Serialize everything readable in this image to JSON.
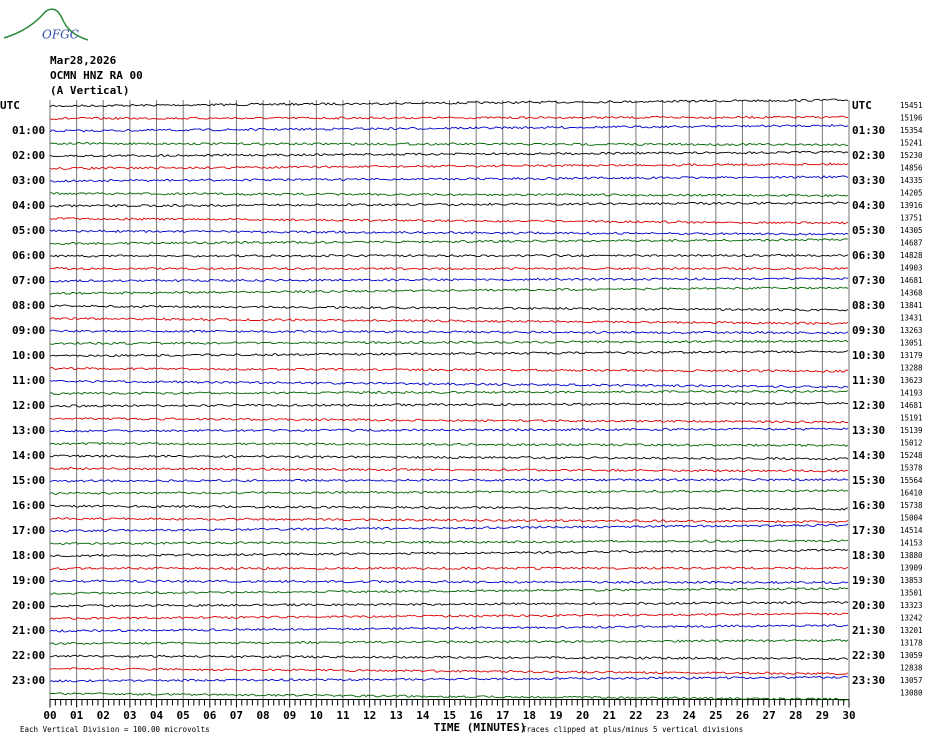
{
  "header": {
    "logo": "OFGC",
    "date": "Mar28,2026",
    "station": "OCMN HNZ RA 00",
    "component": "(A Vertical)"
  },
  "left_labels": [
    "UTC",
    "01:00",
    "02:00",
    "03:00",
    "04:00",
    "05:00",
    "06:00",
    "07:00",
    "08:00",
    "09:00",
    "10:00",
    "11:00",
    "12:00",
    "13:00",
    "14:00",
    "15:00",
    "16:00",
    "17:00",
    "18:00",
    "19:00",
    "20:00",
    "21:00",
    "22:00",
    "23:00"
  ],
  "right_labels": [
    "UTC",
    "01:30",
    "02:30",
    "03:30",
    "04:30",
    "05:30",
    "06:30",
    "07:30",
    "08:30",
    "09:30",
    "10:30",
    "11:30",
    "12:30",
    "13:30",
    "14:30",
    "15:30",
    "16:30",
    "17:30",
    "18:30",
    "19:30",
    "20:30",
    "21:30",
    "22:30",
    "23:30"
  ],
  "counts": [
    15451,
    15196,
    15354,
    15241,
    15230,
    14856,
    14335,
    14205,
    13916,
    13751,
    14305,
    14687,
    14828,
    14903,
    14681,
    14368,
    13841,
    13431,
    13263,
    13051,
    13179,
    13288,
    13623,
    14193,
    14681,
    15191,
    15139,
    15012,
    15248,
    15378,
    15564,
    16410,
    15738,
    15004,
    14514,
    14153,
    13880,
    13909,
    13853,
    13501,
    13323,
    13242,
    13201,
    13178,
    13059,
    12838,
    13057,
    13080
  ],
  "x_ticks": [
    "00",
    "01",
    "02",
    "03",
    "04",
    "05",
    "06",
    "07",
    "08",
    "09",
    "10",
    "11",
    "12",
    "13",
    "14",
    "15",
    "16",
    "17",
    "18",
    "19",
    "20",
    "21",
    "22",
    "23",
    "24",
    "25",
    "26",
    "27",
    "28",
    "29",
    "30"
  ],
  "x_axis_title": "TIME (MINUTES)",
  "footer_left": "Each Vertical Division =  100.00 microvolts",
  "footer_right": "Traces clipped at plus/minus 5 vertical divisions"
}
